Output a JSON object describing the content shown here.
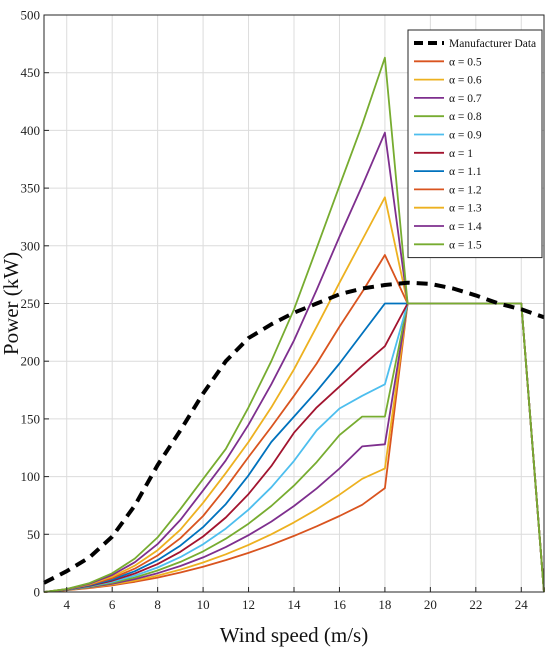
{
  "chart_data": {
    "type": "line",
    "title": "",
    "xlabel": "Wind speed (m/s)",
    "ylabel": "Power (kW)",
    "xlim": [
      3,
      25
    ],
    "ylim": [
      0,
      500
    ],
    "xticks": [
      4,
      6,
      8,
      10,
      12,
      14,
      16,
      18,
      20,
      22,
      24
    ],
    "yticks": [
      0,
      50,
      100,
      150,
      200,
      250,
      300,
      350,
      400,
      450,
      500
    ],
    "grid": true,
    "legend_position": "top-right",
    "series": [
      {
        "name": "Manufacturer Data",
        "color": "#000000",
        "dash": true,
        "x": [
          3,
          4,
          5,
          6,
          7,
          8,
          9,
          10,
          11,
          12,
          13,
          14,
          15,
          16,
          17,
          18,
          19,
          20,
          21,
          22,
          23,
          24,
          25
        ],
        "y": [
          8,
          18,
          30,
          48,
          75,
          110,
          140,
          172,
          200,
          220,
          232,
          242,
          250,
          258,
          263,
          266,
          268,
          267,
          263,
          257,
          250,
          245,
          238
        ]
      },
      {
        "name": "α = 0.5",
        "color": "#d9541f",
        "x": [
          3,
          4,
          5,
          6,
          7,
          8,
          9,
          10,
          11,
          12,
          13,
          14,
          15,
          16,
          17,
          18,
          19,
          24,
          25
        ],
        "y": [
          0,
          1.6,
          3.4,
          5.8,
          8.8,
          12.5,
          16.9,
          21.9,
          27.6,
          33.9,
          40.9,
          48.6,
          56.9,
          65.9,
          75.6,
          90,
          250,
          250,
          0
        ]
      },
      {
        "name": "α = 0.6",
        "color": "#edb120",
        "x": [
          3,
          4,
          5,
          6,
          7,
          8,
          9,
          10,
          11,
          12,
          13,
          14,
          15,
          16,
          17,
          18,
          19,
          24,
          25
        ],
        "y": [
          0,
          1.7,
          3.8,
          6.5,
          9.9,
          14.2,
          19.4,
          25.6,
          32.7,
          40.8,
          50,
          60.3,
          71.7,
          84.3,
          98.1,
          107,
          250,
          250,
          0
        ]
      },
      {
        "name": "α = 0.7",
        "color": "#7e2f8e",
        "x": [
          3,
          4,
          5,
          6,
          7,
          8,
          9,
          10,
          11,
          12,
          13,
          14,
          15,
          16,
          17,
          18,
          19,
          24,
          25
        ],
        "y": [
          0,
          1.8,
          4.2,
          7.2,
          11.2,
          16.3,
          22.5,
          30,
          38.9,
          49.2,
          61,
          74.5,
          89.8,
          107,
          126.2,
          128,
          250,
          250,
          0
        ]
      },
      {
        "name": "α = 0.8",
        "color": "#77ac30",
        "x": [
          3,
          4,
          5,
          6,
          7,
          8,
          9,
          10,
          11,
          12,
          13,
          14,
          15,
          16,
          17,
          18,
          19,
          24,
          25
        ],
        "y": [
          0,
          1.9,
          4.5,
          8,
          12.6,
          18.6,
          26.1,
          35.2,
          46.2,
          59.2,
          74.5,
          92.2,
          112.6,
          136,
          152,
          152,
          250,
          250,
          0
        ]
      },
      {
        "name": "α = 0.9",
        "color": "#4dbeee",
        "x": [
          3,
          4,
          5,
          6,
          7,
          8,
          9,
          10,
          11,
          12,
          13,
          14,
          15,
          16,
          17,
          18,
          19,
          24,
          25
        ],
        "y": [
          0,
          2,
          4.9,
          8.9,
          14.2,
          21.2,
          30.2,
          41.3,
          54.9,
          71.3,
          90.7,
          113.6,
          140.1,
          159,
          170,
          180,
          250,
          250,
          0
        ]
      },
      {
        "name": "α = 1",
        "color": "#a2142f",
        "x": [
          3,
          4,
          5,
          6,
          7,
          8,
          9,
          10,
          11,
          12,
          13,
          14,
          15,
          16,
          17,
          18,
          19,
          24,
          25
        ],
        "y": [
          0,
          2.1,
          5.3,
          9.8,
          16,
          24.2,
          34.8,
          48.1,
          64.6,
          84.8,
          109.1,
          138,
          160,
          178,
          196,
          213,
          250,
          250,
          0
        ]
      },
      {
        "name": "α = 1.1",
        "color": "#0072bd",
        "x": [
          3,
          4,
          5,
          6,
          7,
          8,
          9,
          10,
          11,
          12,
          13,
          14,
          15,
          16,
          17,
          18,
          19,
          24,
          25
        ],
        "y": [
          0,
          2.2,
          5.7,
          10.8,
          18,
          27.6,
          40.2,
          56.2,
          76.2,
          101,
          130,
          152,
          174,
          198,
          224,
          250,
          250,
          250,
          0
        ]
      },
      {
        "name": "α = 1.2",
        "color": "#d9541f",
        "x": [
          3,
          4,
          5,
          6,
          7,
          8,
          9,
          10,
          11,
          12,
          13,
          14,
          15,
          16,
          17,
          18,
          19,
          24,
          25
        ],
        "y": [
          0,
          2.3,
          6.2,
          12,
          20.3,
          31.6,
          46.6,
          65.9,
          90.3,
          117,
          143,
          170,
          198,
          230,
          260,
          292,
          250,
          250,
          0
        ]
      },
      {
        "name": "α = 1.3",
        "color": "#edb120",
        "x": [
          3,
          4,
          5,
          6,
          7,
          8,
          9,
          10,
          11,
          12,
          13,
          14,
          15,
          16,
          17,
          18,
          19,
          24,
          25
        ],
        "y": [
          0,
          2.4,
          6.7,
          13.3,
          22.9,
          36.2,
          54,
          77.3,
          103,
          130,
          160,
          193,
          230,
          268,
          305,
          342,
          250,
          250,
          0
        ]
      },
      {
        "name": "α = 1.4",
        "color": "#7e2f8e",
        "x": [
          3,
          4,
          5,
          6,
          7,
          8,
          9,
          10,
          11,
          12,
          13,
          14,
          15,
          16,
          17,
          18,
          19,
          24,
          25
        ],
        "y": [
          0,
          2.5,
          7.2,
          14.7,
          25.8,
          41.5,
          62.5,
          88,
          114,
          145,
          180,
          218,
          262,
          308,
          352,
          398,
          250,
          250,
          0
        ]
      },
      {
        "name": "α = 1.5",
        "color": "#77ac30",
        "x": [
          3,
          4,
          5,
          6,
          7,
          8,
          9,
          10,
          11,
          12,
          13,
          14,
          15,
          16,
          17,
          18,
          19,
          24,
          25
        ],
        "y": [
          0,
          2.6,
          7.7,
          16.2,
          29,
          47.3,
          71.8,
          98,
          124,
          160,
          200,
          245,
          298,
          352,
          405,
          463,
          250,
          250,
          0
        ]
      }
    ]
  }
}
